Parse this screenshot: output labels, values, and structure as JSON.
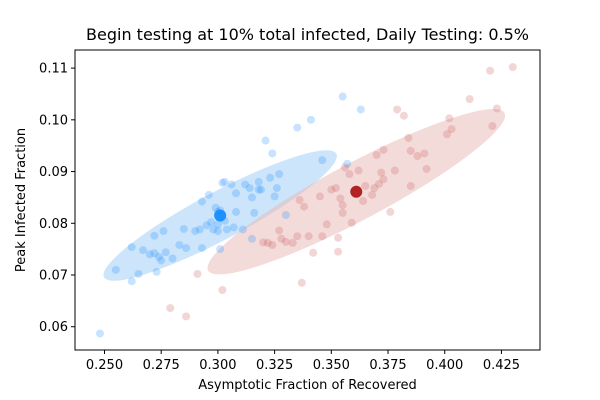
{
  "chart_data": {
    "type": "scatter",
    "title": "Begin testing at 10% total infected, Daily Testing: 0.5%",
    "xlabel": "Asymptotic Fraction of Recovered",
    "ylabel": "Peak Infected Fraction",
    "xlim": [
      0.237,
      0.442
    ],
    "ylim": [
      0.0555,
      0.1135
    ],
    "xticks": [
      "0.250",
      "0.275",
      "0.300",
      "0.325",
      "0.350",
      "0.375",
      "0.400",
      "0.425"
    ],
    "yticks": [
      "0.06",
      "0.07",
      "0.08",
      "0.09",
      "0.10",
      "0.11"
    ],
    "grid": false,
    "legend": "none",
    "series": [
      {
        "color": "#1e90ff",
        "mean_color": "#1e90ff",
        "ellipse_color": "#9ccbf7",
        "mean": [
          0.301,
          0.0815
        ],
        "ellipse": {
          "center": [
            0.301,
            0.0815
          ],
          "rx_axis": 0.058,
          "ry_axis": 0.0046,
          "angle_deg": -28
        },
        "points": [
          [
            0.248,
            0.0587
          ],
          [
            0.255,
            0.071
          ],
          [
            0.262,
            0.0688
          ],
          [
            0.262,
            0.0754
          ],
          [
            0.265,
            0.0702
          ],
          [
            0.267,
            0.0748
          ],
          [
            0.27,
            0.074
          ],
          [
            0.272,
            0.0742
          ],
          [
            0.272,
            0.0776
          ],
          [
            0.273,
            0.0706
          ],
          [
            0.274,
            0.0735
          ],
          [
            0.275,
            0.0728
          ],
          [
            0.276,
            0.0785
          ],
          [
            0.277,
            0.0744
          ],
          [
            0.28,
            0.0732
          ],
          [
            0.283,
            0.0758
          ],
          [
            0.285,
            0.0789
          ],
          [
            0.286,
            0.0752
          ],
          [
            0.29,
            0.0785
          ],
          [
            0.292,
            0.0788
          ],
          [
            0.293,
            0.0752
          ],
          [
            0.293,
            0.0842
          ],
          [
            0.295,
            0.0796
          ],
          [
            0.296,
            0.0855
          ],
          [
            0.297,
            0.0802
          ],
          [
            0.298,
            0.0788
          ],
          [
            0.299,
            0.083
          ],
          [
            0.3,
            0.0822
          ],
          [
            0.3,
            0.0798
          ],
          [
            0.3,
            0.0785
          ],
          [
            0.301,
            0.075
          ],
          [
            0.301,
            0.0825
          ],
          [
            0.302,
            0.0878
          ],
          [
            0.303,
            0.0805
          ],
          [
            0.303,
            0.088
          ],
          [
            0.304,
            0.0788
          ],
          [
            0.306,
            0.0875
          ],
          [
            0.307,
            0.0792
          ],
          [
            0.308,
            0.0822
          ],
          [
            0.308,
            0.0858
          ],
          [
            0.311,
            0.0788
          ],
          [
            0.312,
            0.0875
          ],
          [
            0.314,
            0.0868
          ],
          [
            0.315,
            0.085
          ],
          [
            0.315,
            0.077
          ],
          [
            0.316,
            0.082
          ],
          [
            0.318,
            0.0865
          ],
          [
            0.318,
            0.088
          ],
          [
            0.319,
            0.0865
          ],
          [
            0.321,
            0.096
          ],
          [
            0.323,
            0.0888
          ],
          [
            0.324,
            0.0935
          ],
          [
            0.325,
            0.0852
          ],
          [
            0.326,
            0.0868
          ],
          [
            0.327,
            0.0895
          ],
          [
            0.33,
            0.0816
          ],
          [
            0.335,
            0.0985
          ],
          [
            0.341,
            0.1
          ],
          [
            0.346,
            0.0922
          ],
          [
            0.355,
            0.1045
          ],
          [
            0.357,
            0.0915
          ],
          [
            0.363,
            0.102
          ]
        ]
      },
      {
        "color": "#cd5c5c",
        "mean_color": "#b22222",
        "ellipse_color": "#e8b8b6",
        "mean": [
          0.361,
          0.0861
        ],
        "ellipse": {
          "center": [
            0.361,
            0.0861
          ],
          "rx_axis": 0.074,
          "ry_axis": 0.0055,
          "angle_deg": -28
        },
        "points": [
          [
            0.279,
            0.0636
          ],
          [
            0.286,
            0.062
          ],
          [
            0.291,
            0.0702
          ],
          [
            0.302,
            0.0671
          ],
          [
            0.32,
            0.0763
          ],
          [
            0.322,
            0.0762
          ],
          [
            0.324,
            0.0758
          ],
          [
            0.327,
            0.0786
          ],
          [
            0.328,
            0.077
          ],
          [
            0.33,
            0.0764
          ],
          [
            0.333,
            0.0762
          ],
          [
            0.335,
            0.0775
          ],
          [
            0.336,
            0.0845
          ],
          [
            0.337,
            0.0685
          ],
          [
            0.338,
            0.0832
          ],
          [
            0.34,
            0.0775
          ],
          [
            0.342,
            0.0743
          ],
          [
            0.345,
            0.0852
          ],
          [
            0.346,
            0.0775
          ],
          [
            0.348,
            0.0798
          ],
          [
            0.35,
            0.0865
          ],
          [
            0.352,
            0.0868
          ],
          [
            0.353,
            0.0772
          ],
          [
            0.353,
            0.0745
          ],
          [
            0.354,
            0.0848
          ],
          [
            0.355,
            0.082
          ],
          [
            0.355,
            0.0835
          ],
          [
            0.356,
            0.0908
          ],
          [
            0.358,
            0.0895
          ],
          [
            0.359,
            0.0801
          ],
          [
            0.361,
            0.0865
          ],
          [
            0.362,
            0.0902
          ],
          [
            0.364,
            0.0843
          ],
          [
            0.365,
            0.0872
          ],
          [
            0.368,
            0.0855
          ],
          [
            0.369,
            0.0868
          ],
          [
            0.37,
            0.0932
          ],
          [
            0.371,
            0.0876
          ],
          [
            0.372,
            0.0898
          ],
          [
            0.373,
            0.0885
          ],
          [
            0.373,
            0.0942
          ],
          [
            0.376,
            0.0822
          ],
          [
            0.378,
            0.0902
          ],
          [
            0.379,
            0.102
          ],
          [
            0.382,
            0.1008
          ],
          [
            0.384,
            0.0965
          ],
          [
            0.385,
            0.094
          ],
          [
            0.385,
            0.0872
          ],
          [
            0.388,
            0.093
          ],
          [
            0.391,
            0.0935
          ],
          [
            0.392,
            0.0905
          ],
          [
            0.401,
            0.0972
          ],
          [
            0.402,
            0.1003
          ],
          [
            0.403,
            0.0982
          ],
          [
            0.411,
            0.104
          ],
          [
            0.42,
            0.1095
          ],
          [
            0.421,
            0.0988
          ],
          [
            0.423,
            0.1022
          ],
          [
            0.43,
            0.1102
          ]
        ]
      }
    ]
  }
}
